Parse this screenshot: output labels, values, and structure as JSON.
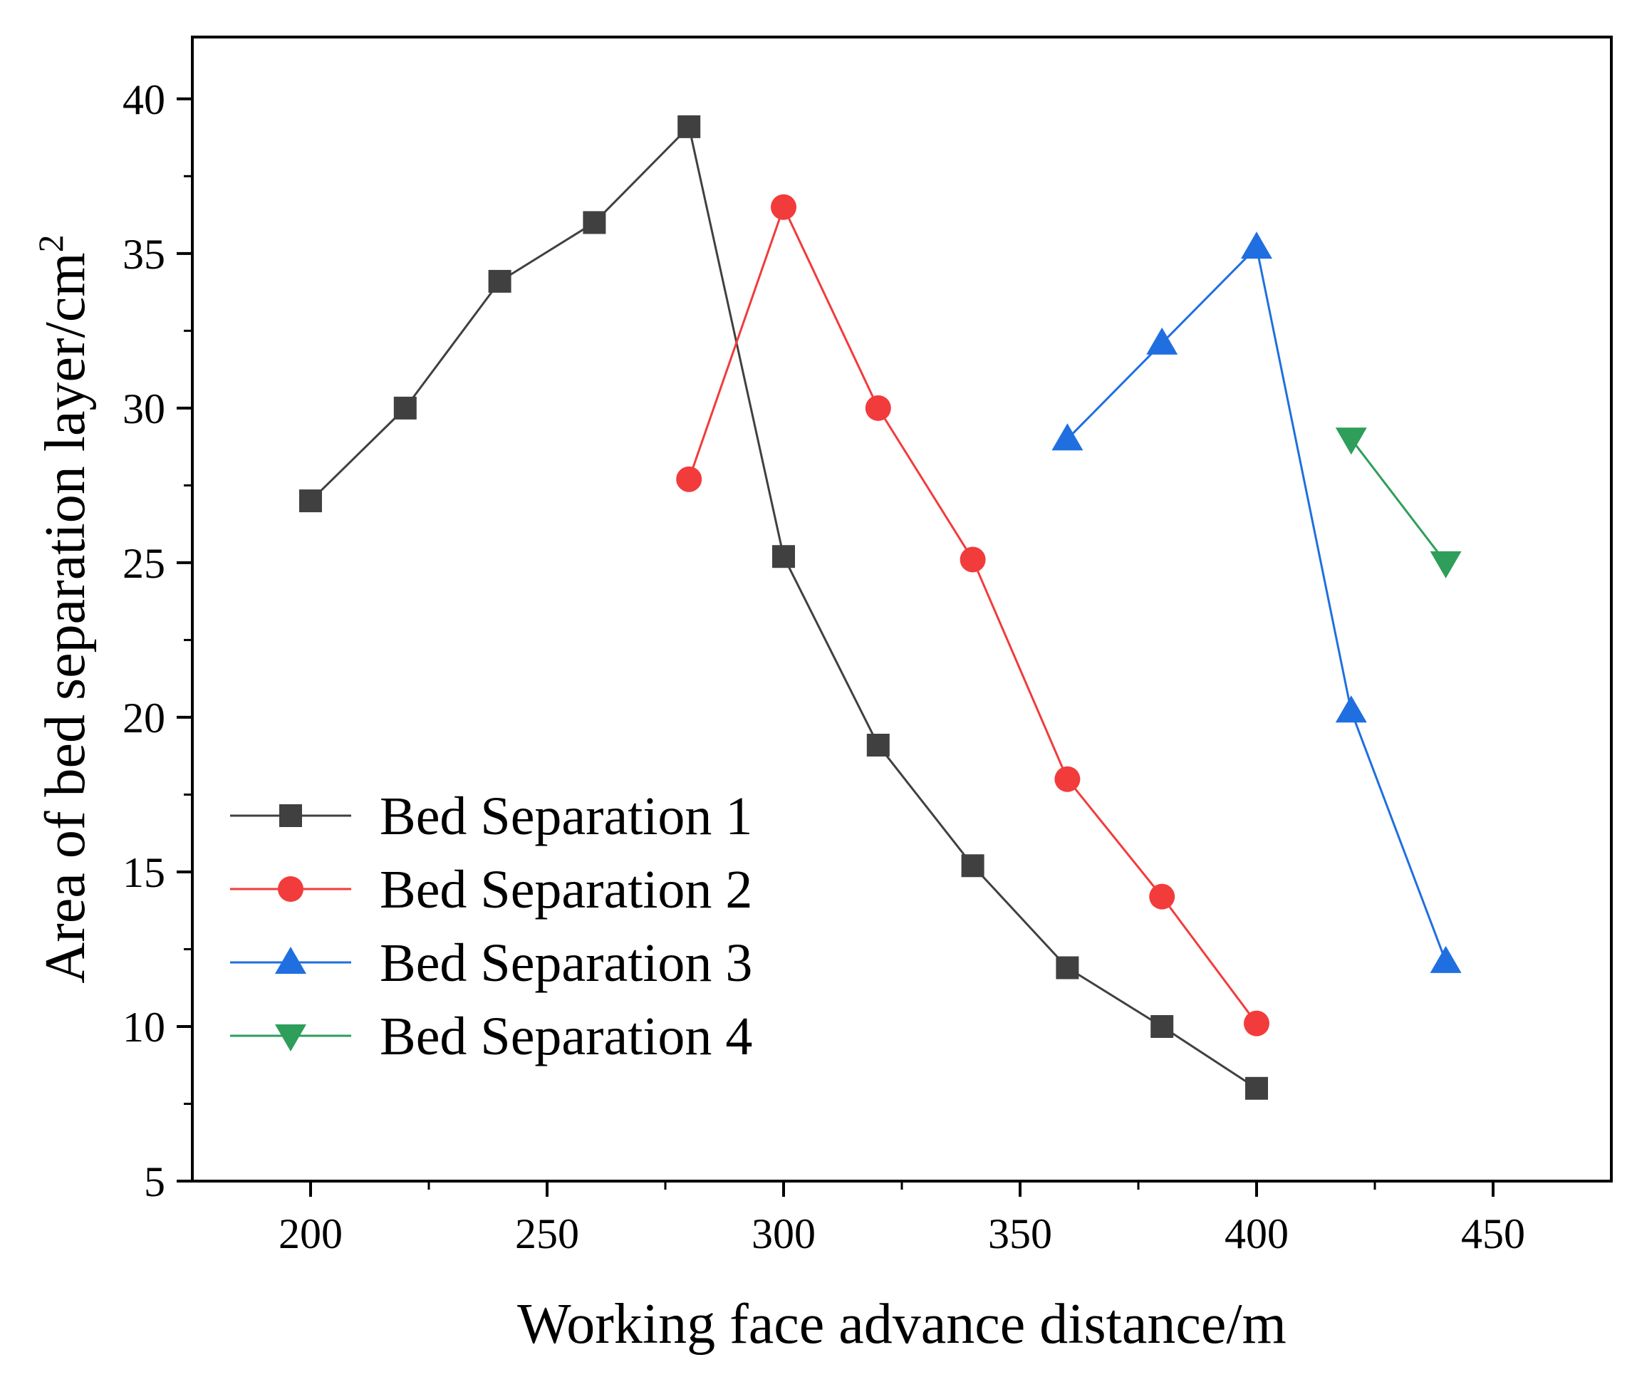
{
  "chart_data": {
    "type": "line",
    "title": "",
    "xlabel": "Working face advance distance/m",
    "ylabel": "Area of bed separation layer/cm",
    "ylabel_superscript": "2",
    "xlim": [
      175,
      475
    ],
    "ylim": [
      5,
      42
    ],
    "xticks": [
      200,
      250,
      300,
      350,
      400,
      450
    ],
    "yticks": [
      5,
      10,
      15,
      20,
      25,
      30,
      35,
      40
    ],
    "xtick_labels": [
      "200",
      "250",
      "300",
      "350",
      "400",
      "450"
    ],
    "ytick_labels": [
      "5",
      "10",
      "15",
      "20",
      "25",
      "30",
      "35",
      "40"
    ],
    "grid": false,
    "legend_position": "bottom-left",
    "series": [
      {
        "name": "Bed Separation 1",
        "color": "#404040",
        "marker": "square",
        "x": [
          200,
          220,
          240,
          260,
          280,
          300,
          320,
          340,
          360,
          380,
          400
        ],
        "y": [
          27,
          30,
          34.1,
          36,
          39.1,
          25.2,
          19.1,
          15.2,
          11.9,
          10,
          8
        ]
      },
      {
        "name": "Bed Separation 2",
        "color": "#f23b3b",
        "marker": "circle",
        "x": [
          280,
          300,
          320,
          340,
          360,
          380,
          400
        ],
        "y": [
          27.7,
          36.5,
          30,
          25.1,
          18,
          14.2,
          10.1
        ]
      },
      {
        "name": "Bed Separation 3",
        "color": "#1f6fe0",
        "marker": "triangle-up",
        "x": [
          360,
          380,
          400,
          420,
          440
        ],
        "y": [
          29,
          32.1,
          35.2,
          20.2,
          12.1
        ]
      },
      {
        "name": "Bed Separation 4",
        "color": "#2e9e5a",
        "marker": "triangle-down",
        "x": [
          420,
          440
        ],
        "y": [
          29,
          25
        ]
      }
    ]
  }
}
